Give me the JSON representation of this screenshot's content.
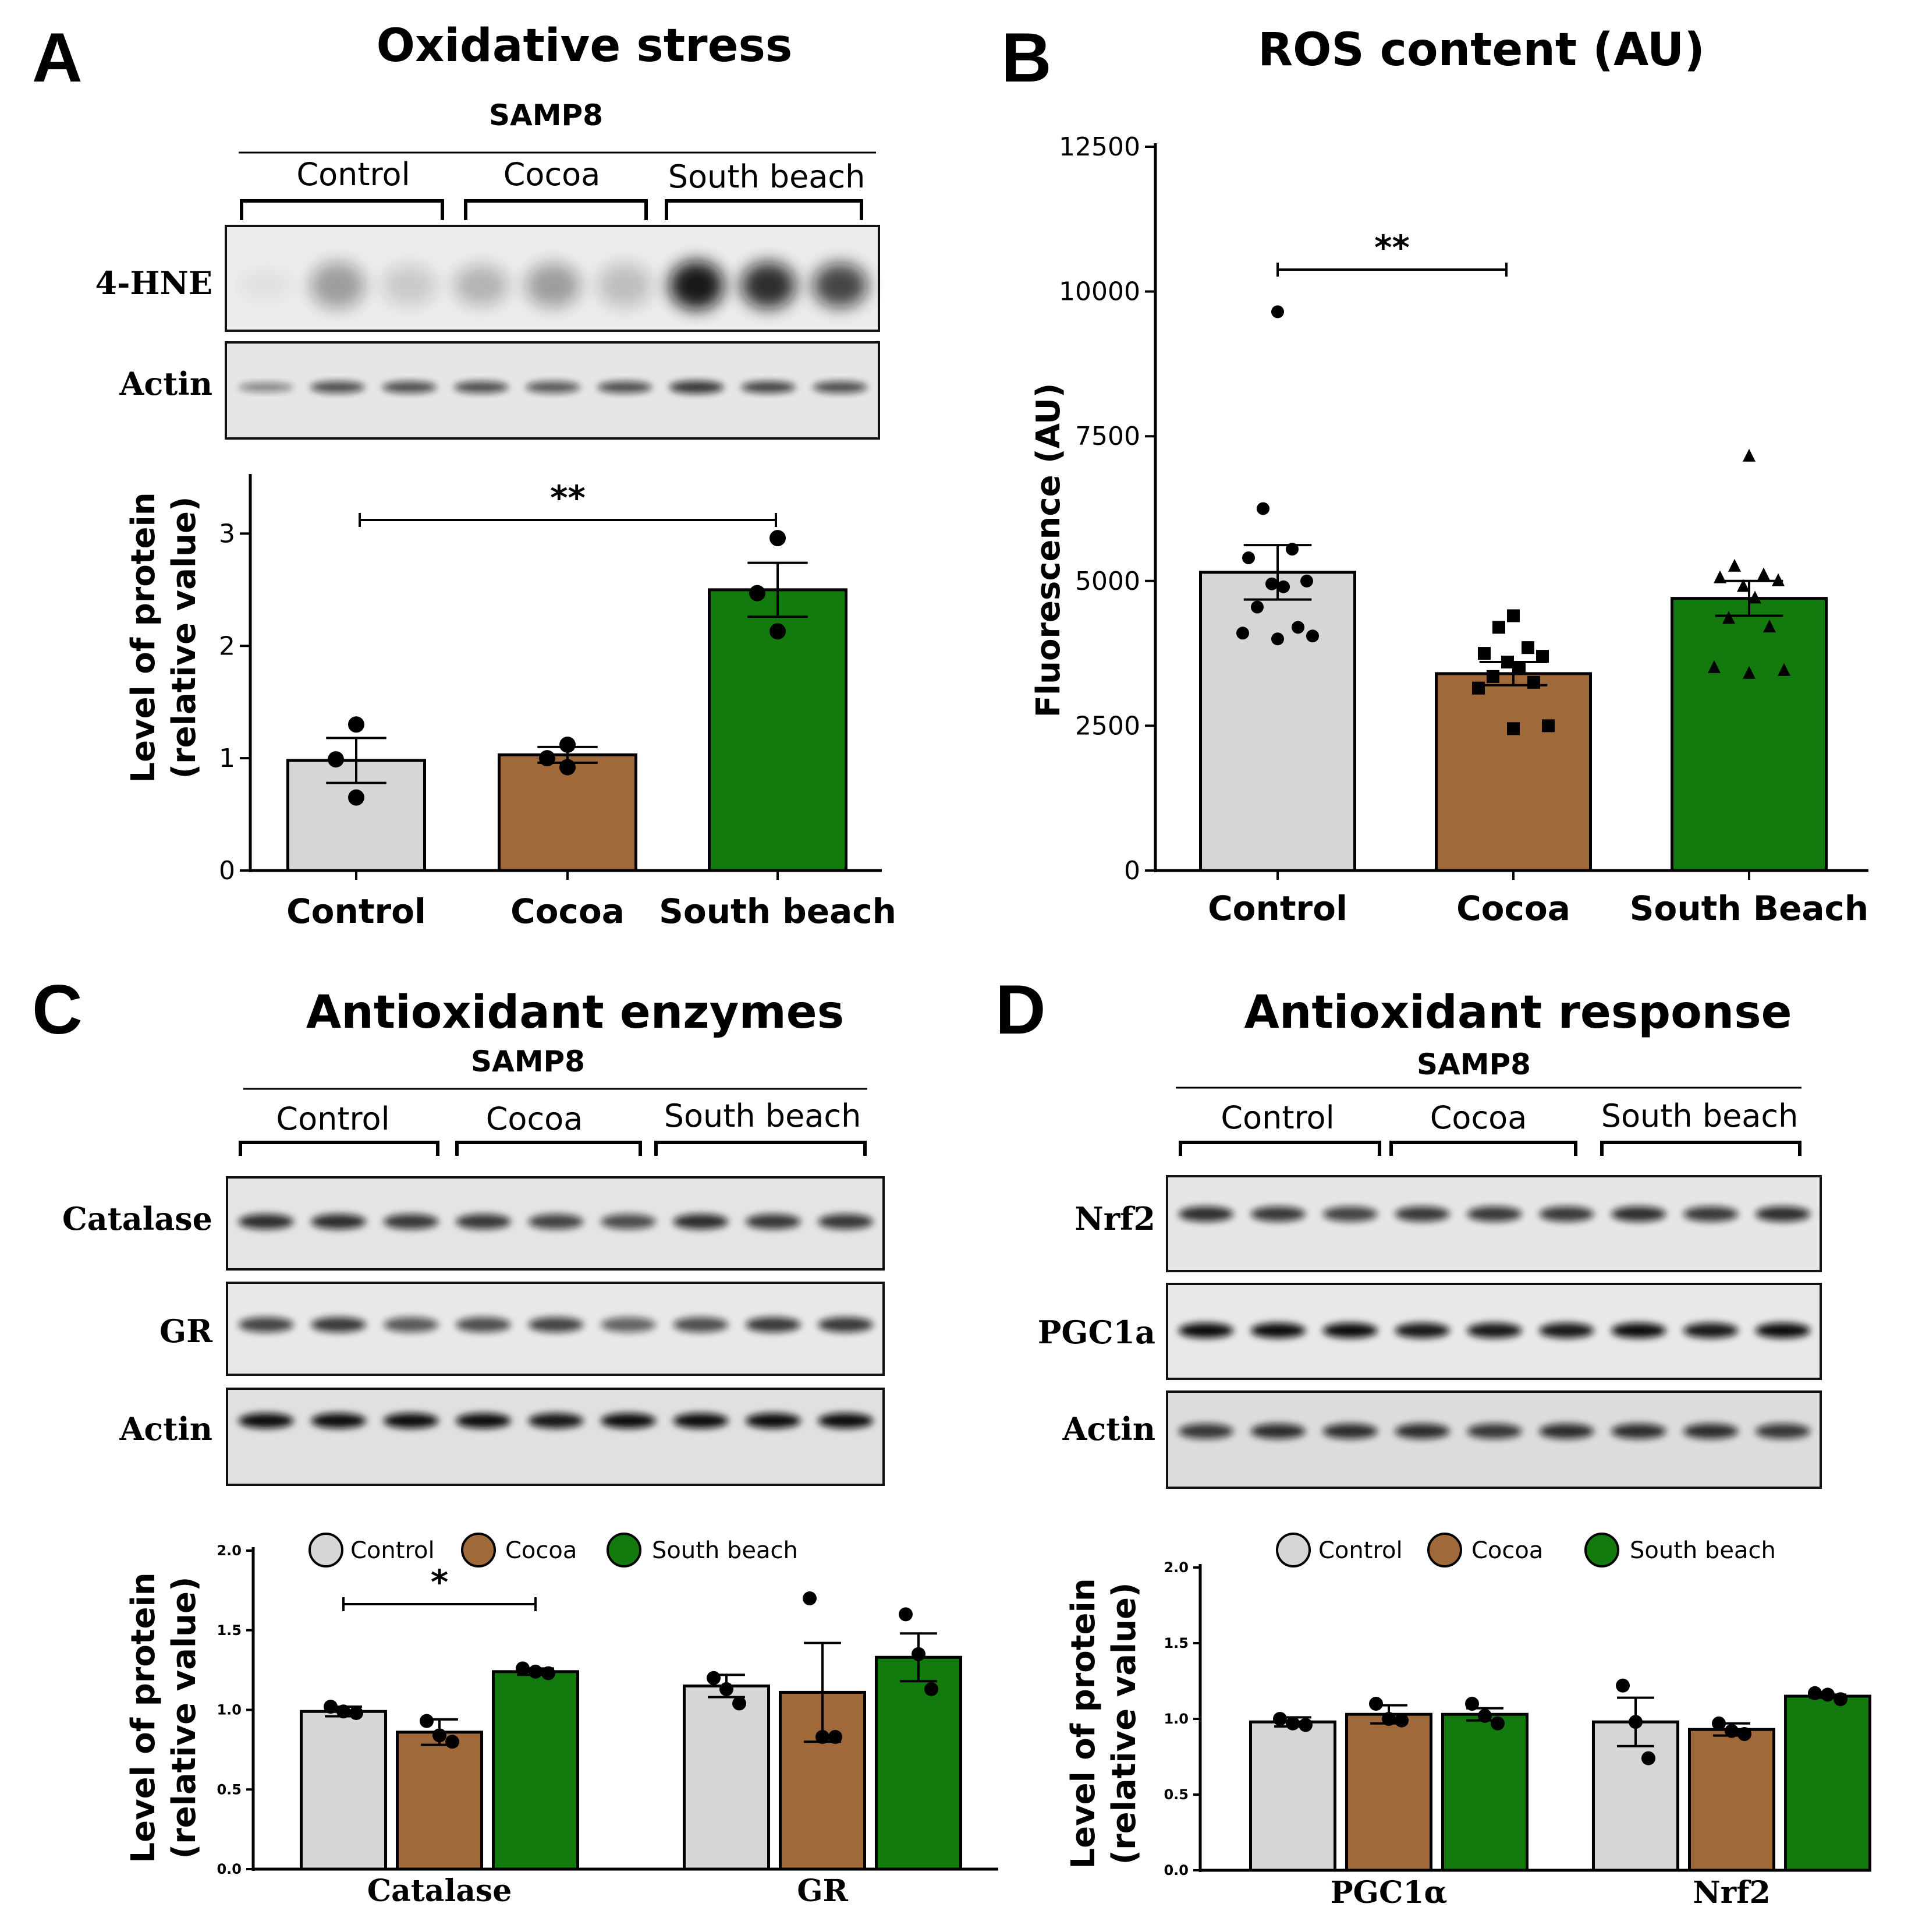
{
  "colors": {
    "control": "#d6d6d6",
    "cocoa": "#a0693a",
    "south_beach": "#137a0e",
    "blot_bg": "#e8e8e8",
    "band": "#1a1a1a"
  },
  "panels": {
    "A": {
      "letter": "A",
      "title": "Oxidative stress",
      "strain": "SAMP8",
      "groups": [
        "Control",
        "Cocoa",
        "South beach"
      ],
      "blots": [
        "4-HNE",
        "Actin"
      ],
      "ylabel_1": "Level of protein",
      "ylabel_2": "(relative value)",
      "yticks": [
        "0",
        "1",
        "2",
        "3"
      ],
      "xlabels": [
        "Control",
        "Cocoa",
        "South beach"
      ],
      "sig": "**"
    },
    "B": {
      "letter": "B",
      "title": "ROS content (AU)",
      "ylabel": "Fluorescence (AU)",
      "yticks": [
        "0",
        "2500",
        "5000",
        "7500",
        "10000",
        "12500"
      ],
      "xlabels": [
        "Control",
        "Cocoa",
        "South Beach"
      ],
      "sig": "**"
    },
    "C": {
      "letter": "C",
      "title": "Antioxidant enzymes",
      "strain": "SAMP8",
      "groups": [
        "Control",
        "Cocoa",
        "South beach"
      ],
      "blots": [
        "Catalase",
        "GR",
        "Actin"
      ],
      "legend": [
        "Control",
        "Cocoa",
        "South beach"
      ],
      "ylabel_1": "Level of protein",
      "ylabel_2": "(relative value)",
      "yticks": [
        "0.0",
        "0.5",
        "1.0",
        "1.5",
        "2.0"
      ],
      "xlabels": [
        "Catalase",
        "GR"
      ],
      "sig": "*"
    },
    "D": {
      "letter": "D",
      "title": "Antioxidant response",
      "strain": "SAMP8",
      "groups": [
        "Control",
        "Cocoa",
        "South beach"
      ],
      "blots": [
        "Nrf2",
        "PGC1a",
        "Actin"
      ],
      "legend": [
        "Control",
        "Cocoa",
        "South beach"
      ],
      "ylabel_1": "Level of protein",
      "ylabel_2": "(relative value)",
      "yticks": [
        "0.0",
        "0.5",
        "1.0",
        "1.5",
        "2.0"
      ],
      "xlabels": [
        "PGC1α",
        "Nrf2"
      ]
    }
  },
  "chart_data": [
    {
      "panel": "A",
      "type": "bar",
      "categories": [
        "Control",
        "Cocoa",
        "South beach"
      ],
      "values": [
        0.98,
        1.03,
        2.5
      ],
      "errors": [
        0.2,
        0.07,
        0.24
      ],
      "points": [
        [
          1.3,
          0.99,
          0.65
        ],
        [
          1.12,
          1.0,
          0.92
        ],
        [
          2.96,
          2.47,
          2.13
        ]
      ],
      "ylabel": "Level of protein (relative value)",
      "ylim": [
        0,
        3.5
      ],
      "significance": [
        {
          "from": 0,
          "to": 2,
          "label": "**"
        }
      ]
    },
    {
      "panel": "B",
      "type": "bar",
      "title": "ROS content (AU)",
      "categories": [
        "Control",
        "Cocoa",
        "South Beach"
      ],
      "values": [
        5150,
        3400,
        4700
      ],
      "errors": [
        470,
        200,
        300
      ],
      "points": [
        [
          9650,
          6250,
          5550,
          5400,
          5000,
          4950,
          4900,
          4550,
          4200,
          4100,
          4050,
          4000
        ],
        [
          4400,
          4200,
          3850,
          3750,
          3700,
          3600,
          3500,
          3350,
          3250,
          3150,
          2500,
          2450
        ],
        [
          7150,
          5250,
          5100,
          5050,
          5000,
          4900,
          4700,
          4350,
          4200,
          3500,
          3450,
          3400
        ]
      ],
      "ylabel": "Fluorescence (AU)",
      "ylim": [
        0,
        12500
      ],
      "significance": [
        {
          "from": 0,
          "to": 1,
          "label": "**"
        }
      ]
    },
    {
      "panel": "C",
      "type": "bar",
      "categories": [
        "Catalase",
        "GR"
      ],
      "series": [
        {
          "name": "Control",
          "values": [
            0.99,
            1.15
          ],
          "errors": [
            0.03,
            0.07
          ],
          "points": [
            [
              1.02,
              0.99,
              0.98
            ],
            [
              1.2,
              1.13,
              1.04
            ]
          ]
        },
        {
          "name": "Cocoa",
          "values": [
            0.86,
            1.11
          ],
          "errors": [
            0.08,
            0.31
          ],
          "points": [
            [
              0.93,
              0.84,
              0.8
            ],
            [
              1.7,
              0.83,
              0.83
            ]
          ]
        },
        {
          "name": "South beach",
          "values": [
            1.24,
            1.33
          ],
          "errors": [
            0.02,
            0.15
          ],
          "points": [
            [
              1.26,
              1.24,
              1.23
            ],
            [
              1.6,
              1.35,
              1.13
            ]
          ]
        }
      ],
      "ylabel": "Level of protein (relative value)",
      "ylim": [
        0,
        2.0
      ],
      "significance": [
        {
          "category": "Catalase",
          "from": "Control",
          "to": "South beach",
          "label": "*"
        }
      ]
    },
    {
      "panel": "D",
      "type": "bar",
      "categories": [
        "PGC1α",
        "Nrf2"
      ],
      "series": [
        {
          "name": "Control",
          "values": [
            0.98,
            0.98
          ],
          "errors": [
            0.03,
            0.16
          ],
          "points": [
            [
              1.0,
              0.97,
              0.96
            ],
            [
              1.22,
              0.98,
              0.74
            ]
          ]
        },
        {
          "name": "Cocoa",
          "values": [
            1.03,
            0.93
          ],
          "errors": [
            0.06,
            0.04
          ],
          "points": [
            [
              1.1,
              1.0,
              0.99
            ],
            [
              0.97,
              0.92,
              0.9
            ]
          ]
        },
        {
          "name": "South beach",
          "values": [
            1.03,
            1.15
          ],
          "errors": [
            0.04,
            0.01
          ],
          "points": [
            [
              1.1,
              1.02,
              0.97
            ],
            [
              1.17,
              1.16,
              1.13
            ]
          ]
        }
      ],
      "ylabel": "Level of protein (relative value)",
      "ylim": [
        0,
        2.0
      ]
    }
  ]
}
